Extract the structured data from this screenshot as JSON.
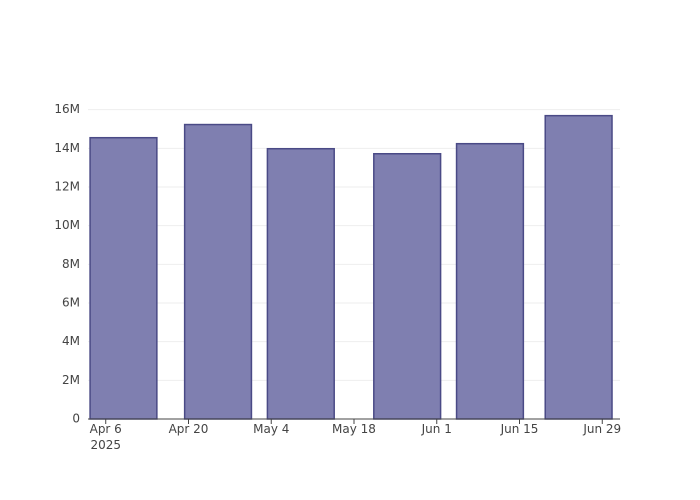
{
  "chart_data": {
    "type": "bar",
    "x": [
      "2025-04-09",
      "2025-04-25",
      "2025-05-09",
      "2025-05-27",
      "2025-06-10",
      "2025-06-25"
    ],
    "values": [
      14550000,
      15230000,
      13980000,
      13720000,
      14240000,
      15690000
    ],
    "color": "#7f7fb0",
    "line_color": "#4a4a86",
    "xlim": [
      "2025-04-03",
      "2025-07-02"
    ],
    "xticks": [
      {
        "value": "2025-04-06",
        "label": "Apr 6\n2025"
      },
      {
        "value": "2025-04-20",
        "label": "Apr 20"
      },
      {
        "value": "2025-05-04",
        "label": "May 4"
      },
      {
        "value": "2025-05-18",
        "label": "May 18"
      },
      {
        "value": "2025-06-01",
        "label": "Jun 1"
      },
      {
        "value": "2025-06-15",
        "label": "Jun 15"
      },
      {
        "value": "2025-06-29",
        "label": "Jun 29"
      }
    ],
    "ylim": [
      0,
      16500000
    ],
    "yticks": [
      0,
      {
        "value": 2000000,
        "label": "2M"
      },
      {
        "value": 4000000,
        "label": "4M"
      },
      {
        "value": 6000000,
        "label": "6M"
      },
      {
        "value": 8000000,
        "label": "8M"
      },
      {
        "value": 10000000,
        "label": "10M"
      },
      {
        "value": 12000000,
        "label": "12M"
      },
      {
        "value": 14000000,
        "label": "14M"
      },
      {
        "value": 16000000,
        "label": "16M"
      }
    ],
    "grid": true
  }
}
